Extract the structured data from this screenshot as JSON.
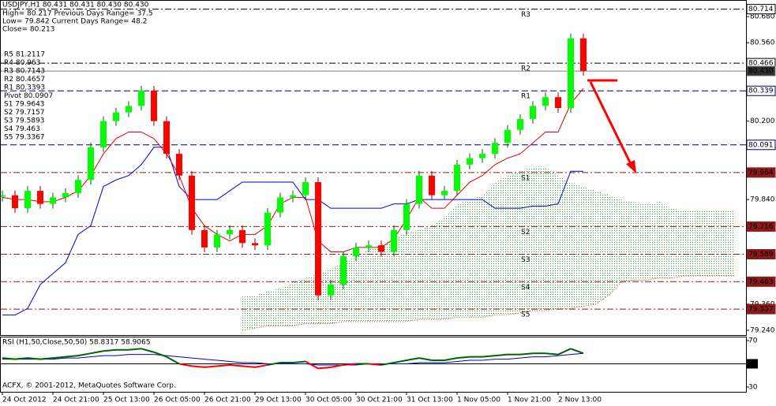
{
  "chart_data": {
    "type": "candlestick",
    "title": "USDJPY,H1  80.431 80.431 80.430 80.430",
    "info": [
      "High= 80.217   Previous Days Range= 37.5",
      "Low= 79.842   Current Days Range= 48.2",
      "Close= 80.213"
    ],
    "pivots": [
      "R5 81.2117",
      "R4 80.963",
      "R3 80.7143",
      "R2 80.4657",
      "R1 80.3393",
      "Pivot 80.0907",
      "S1 79.9643",
      "S2 79.7157",
      "S3 79.5893",
      "S4 79.463",
      "S5 79.3367"
    ],
    "copyright": "ACFX, © 2001-2012, MetaQuotes Software Corp.",
    "categories": [
      "24 Oct 2012",
      null,
      null,
      null,
      "24 Oct 21:00",
      null,
      null,
      null,
      "25 Oct 13:00",
      null,
      null,
      null,
      "26 Oct 05:00",
      null,
      null,
      null,
      "26 Oct 21:00",
      null,
      null,
      null,
      "29 Oct 13:00",
      null,
      null,
      null,
      "30 Oct 05:00",
      null,
      null,
      null,
      "30 Oct 21:00",
      null,
      null,
      null,
      "31 Oct 13:00",
      null,
      null,
      null,
      "1 Nov 05:00",
      null,
      null,
      null,
      "1 Nov 21:00",
      null,
      null,
      null,
      "2 Nov 13:00",
      null,
      null,
      null,
      null,
      null,
      null,
      null,
      null,
      null,
      null,
      null,
      null,
      null,
      null,
      null
    ],
    "values": [
      79.86,
      79.8,
      79.88,
      79.82,
      79.85,
      79.87,
      79.93,
      80.08,
      80.2,
      80.24,
      80.27,
      80.34,
      80.2,
      80.05,
      79.95,
      79.7,
      79.62,
      79.68,
      79.7,
      79.64,
      79.63,
      79.78,
      79.85,
      79.86,
      79.92,
      79.4,
      79.45,
      79.58,
      79.62,
      79.63,
      79.6,
      79.7,
      79.82,
      79.95,
      79.86,
      79.88,
      80.0,
      80.03,
      80.05,
      80.1,
      80.16,
      80.21,
      80.27,
      80.31,
      80.26,
      80.58,
      80.43,
      null,
      null,
      null,
      null,
      null,
      null,
      null,
      null,
      null,
      null,
      null,
      null,
      null
    ],
    "color_up": "#00ff00",
    "color_down": "#ff0000",
    "series": [
      {
        "color": "#0000cc",
        "values": [
          79.31,
          79.31,
          79.34,
          79.45,
          79.5,
          79.55,
          79.68,
          79.72,
          79.9,
          79.93,
          79.95,
          80.0,
          80.08,
          80.08,
          79.9,
          79.84,
          79.84,
          79.84,
          79.88,
          79.92,
          79.92,
          79.92,
          79.92,
          79.92,
          79.84,
          79.84,
          79.8,
          79.8,
          79.8,
          79.8,
          79.8,
          79.82,
          79.82,
          79.84,
          79.84,
          79.84,
          79.84,
          79.84,
          79.84,
          79.8,
          79.8,
          79.8,
          79.81,
          79.81,
          79.82,
          79.97,
          79.97,
          null,
          null,
          null,
          null,
          null,
          null,
          null,
          null,
          null,
          null,
          null,
          null,
          null
        ]
      },
      {
        "color": "#dd0000",
        "values": [
          79.85,
          79.84,
          79.84,
          79.83,
          79.83,
          79.85,
          79.88,
          79.95,
          80.05,
          80.12,
          80.15,
          80.15,
          80.12,
          80.05,
          79.95,
          79.8,
          79.72,
          79.68,
          79.65,
          79.68,
          79.68,
          79.72,
          79.82,
          79.85,
          79.85,
          79.65,
          79.6,
          79.6,
          79.62,
          79.62,
          79.62,
          79.66,
          79.75,
          79.85,
          79.8,
          79.8,
          79.86,
          79.92,
          79.95,
          80.0,
          80.03,
          80.05,
          80.1,
          80.15,
          80.15,
          80.28,
          80.35,
          null,
          null,
          null,
          null,
          null,
          null,
          null,
          null,
          null,
          null,
          null,
          null,
          null
        ]
      }
    ],
    "cloud": {
      "color": "#2e9e2e",
      "edge_color": "#cc3300",
      "upper": [
        null,
        null,
        null,
        null,
        null,
        null,
        null,
        null,
        null,
        null,
        null,
        null,
        null,
        null,
        null,
        null,
        null,
        null,
        null,
        79.4,
        79.4,
        79.42,
        79.43,
        79.46,
        79.48,
        79.5,
        79.52,
        79.55,
        79.58,
        79.61,
        79.63,
        79.66,
        79.69,
        79.7,
        79.72,
        79.76,
        79.82,
        79.84,
        79.86,
        79.92,
        79.95,
        79.97,
        79.99,
        79.99,
        79.95,
        79.92,
        79.9,
        79.88,
        79.86,
        79.84,
        79.83,
        79.82,
        79.83,
        79.8,
        79.79,
        79.79,
        79.79,
        79.79,
        79.79,
        null
      ],
      "lower": [
        null,
        null,
        null,
        null,
        null,
        null,
        null,
        null,
        null,
        null,
        null,
        null,
        null,
        null,
        null,
        null,
        null,
        null,
        null,
        79.24,
        79.25,
        79.26,
        79.26,
        79.26,
        79.27,
        79.27,
        79.27,
        79.28,
        79.28,
        79.28,
        79.28,
        79.28,
        79.28,
        79.29,
        79.29,
        79.29,
        79.3,
        79.3,
        79.3,
        79.31,
        79.31,
        79.32,
        79.33,
        79.33,
        79.34,
        79.34,
        79.35,
        79.36,
        79.4,
        79.46,
        79.47,
        79.47,
        79.48,
        79.48,
        79.49,
        79.49,
        79.49,
        79.49,
        79.49,
        null
      ]
    },
    "ylim": [
      79.218,
      80.756
    ],
    "yticks": [
      {
        "value": 80.68,
        "label": "80.680"
      },
      {
        "value": 80.56,
        "label": "80.560"
      },
      {
        "value": 80.2,
        "label": "80.200"
      },
      {
        "value": 79.84,
        "label": "79.840"
      },
      {
        "value": 79.36,
        "label": "79.360"
      },
      {
        "value": 79.24,
        "label": "79.240"
      }
    ],
    "levels": [
      {
        "value": 80.714,
        "label": "80.714",
        "tag": "R3",
        "color": "#000000",
        "dash": "8 3 2 3",
        "bg": "#ffffff",
        "fg": "#000000"
      },
      {
        "value": 80.466,
        "label": "80.466",
        "tag": "R2",
        "color": "#000000",
        "dash": "8 3 2 3",
        "bg": "#ffffff",
        "fg": "#000000"
      },
      {
        "value": 80.43,
        "label": "80.430",
        "color": "#808080",
        "dash": "none",
        "bg": "#303030",
        "fg": "#ffffff"
      },
      {
        "value": 80.339,
        "label": "80.339",
        "tag": "R1",
        "color": "#000080",
        "dash": "8 4",
        "bg": "#ffffff",
        "fg": "#000080"
      },
      {
        "value": 80.091,
        "label": "80.091",
        "color": "#000080",
        "dash": "8 4",
        "bg": "#ffffff",
        "fg": "#000080"
      },
      {
        "value": 79.964,
        "label": "79.964",
        "tag": "S1",
        "color": "#8b1a1a",
        "dash": "8 3 2 3",
        "bg": "#8b1a1a",
        "fg": "#ffffff"
      },
      {
        "value": 79.716,
        "label": "79.716",
        "tag": "S2",
        "color": "#8b1a1a",
        "dash": "8 3 2 3",
        "bg": "#8b1a1a",
        "fg": "#ffffff"
      },
      {
        "value": 79.589,
        "label": "79.589",
        "tag": "S3",
        "color": "#8b1a1a",
        "dash": "8 3 2 3",
        "bg": "#8b1a1a",
        "fg": "#ffffff"
      },
      {
        "value": 79.463,
        "label": "79.463",
        "tag": "S4",
        "color": "#8b1a1a",
        "dash": "8 3 2 3",
        "bg": "#8b1a1a",
        "fg": "#ffffff"
      },
      {
        "value": 79.337,
        "label": "79.337",
        "tag": "S5",
        "color": "#8b1a1a",
        "dash": "8 3 2 3",
        "bg": "#8b1a1a",
        "fg": "#ffffff"
      }
    ],
    "rsi": {
      "title": "RSI (H1,50,Close,50,50) 58.8317 58.9065",
      "ylim": [
        25.9,
        72.7
      ],
      "yticks": [
        70,
        50,
        30
      ],
      "level": 50,
      "color_up": "#006400",
      "color_down": "#ff0000",
      "ma_color": "#0000cc",
      "values": [
        55,
        54,
        55,
        54,
        55,
        56,
        57,
        59,
        61,
        62,
        62,
        63,
        60,
        56,
        50,
        48,
        47,
        48,
        49,
        48,
        47,
        49,
        51,
        51,
        52,
        46,
        47,
        49,
        50,
        50,
        49,
        51,
        53,
        55,
        53,
        53,
        55,
        56,
        56,
        57,
        58,
        58,
        59,
        59,
        58,
        63,
        59,
        null,
        null,
        null,
        null,
        null,
        null,
        null,
        null,
        null,
        null,
        null,
        null,
        null
      ],
      "ma": [
        54,
        54,
        54,
        54,
        54,
        55,
        55,
        56,
        57,
        57,
        58,
        58,
        58,
        57,
        56,
        55,
        54,
        53,
        52,
        51,
        51,
        50,
        50,
        50,
        50,
        49,
        49,
        49,
        49,
        50,
        50,
        50,
        50,
        51,
        51,
        51,
        52,
        53,
        53,
        54,
        54,
        55,
        56,
        56,
        57,
        58,
        59,
        null,
        null,
        null,
        null,
        null,
        null,
        null,
        null,
        null,
        null,
        null,
        null,
        null
      ]
    }
  }
}
